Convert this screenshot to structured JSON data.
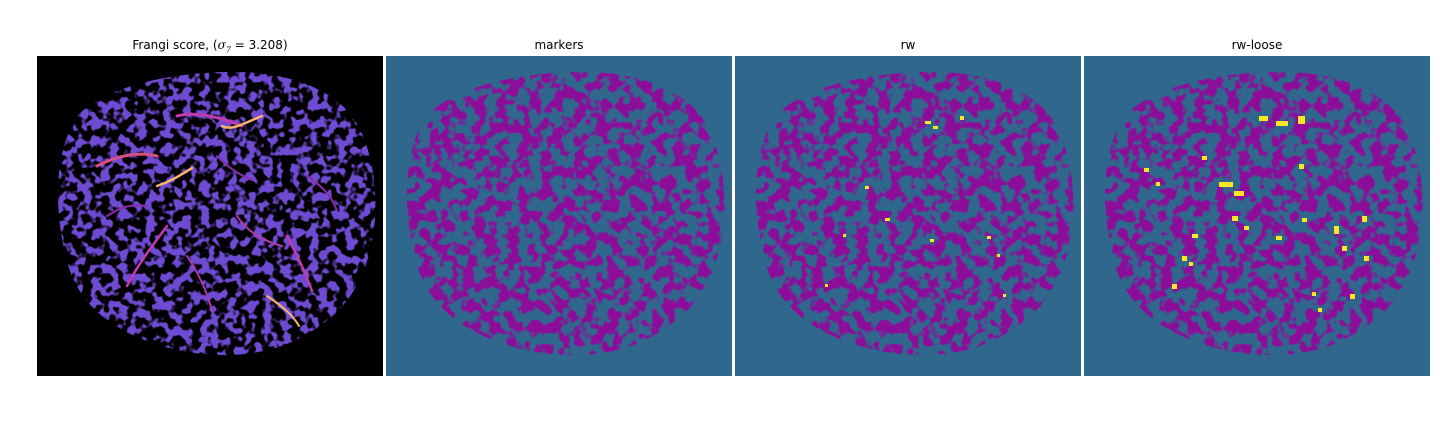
{
  "panels": [
    {
      "id": "frangi",
      "title_prefix": "Frangi score, (",
      "symbol": "σ",
      "subscript": "7",
      "title_suffix": " = 3.208)"
    },
    {
      "id": "markers",
      "title": "markers"
    },
    {
      "id": "rw",
      "title": "rw"
    },
    {
      "id": "rw-loose",
      "title": "rw-loose"
    }
  ],
  "colors": {
    "frangi_background": "#000000",
    "frangi_texture": "#2a12a6",
    "frangi_highlight_mid": "#c03ab0",
    "frangi_highlight_hot": "#f7b26c",
    "label_background": "#30678d",
    "label_foreground": "#440154",
    "label_highlight": "#fde725"
  }
}
